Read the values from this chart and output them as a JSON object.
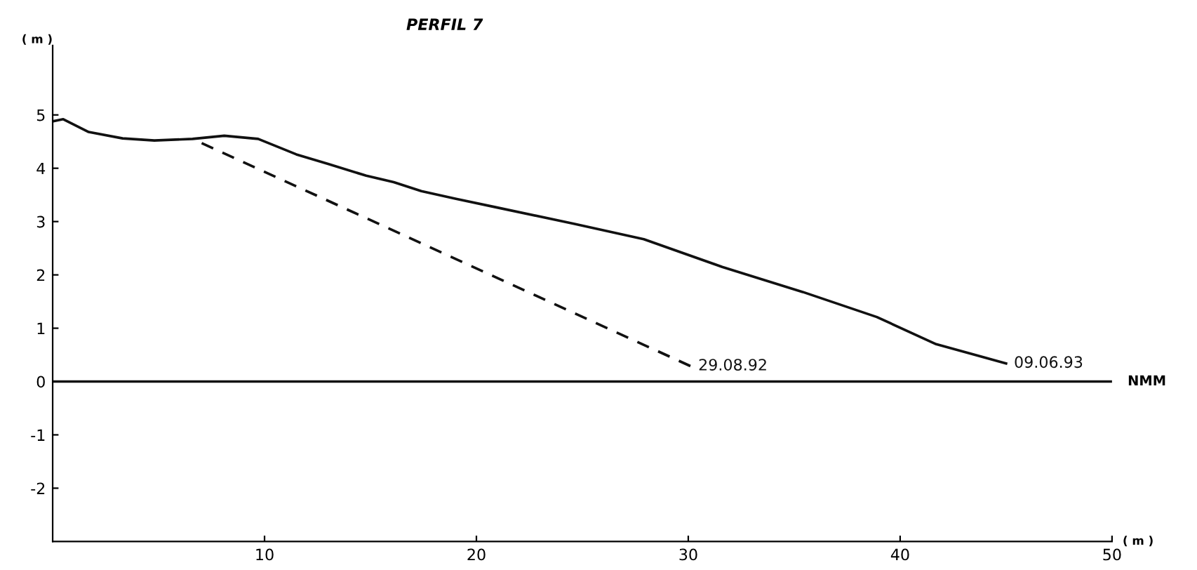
{
  "chart_data": {
    "type": "line",
    "title": "PERFIL 7",
    "ylabel": "( m )",
    "xlabel": "( m )",
    "series": [
      {
        "name": "09.06.93",
        "color": "#111111",
        "line_style": "solid",
        "x": [
          0,
          0.5,
          1.7,
          3.3,
          4.8,
          6.6,
          8.1,
          9.7,
          11.5,
          13,
          14.8,
          16.1,
          17.4,
          19.0,
          20.9,
          24.6,
          27.9,
          31.6,
          35.4,
          38.9,
          41.7,
          45.0
        ],
        "values": [
          4.88,
          4.92,
          4.68,
          4.56,
          4.52,
          4.55,
          4.61,
          4.55,
          4.26,
          4.08,
          3.86,
          3.74,
          3.57,
          3.43,
          3.27,
          2.96,
          2.67,
          2.15,
          1.68,
          1.21,
          0.7,
          0.34
        ]
      },
      {
        "name": "29.08.92",
        "color": "#111111",
        "line_style": "dashed",
        "x": [
          6.6,
          30.1
        ],
        "values": [
          4.55,
          0.29
        ]
      }
    ],
    "xlim": [
      0,
      50
    ],
    "ylim": [
      -3,
      6.3
    ],
    "xticks": [
      10,
      20,
      30,
      40,
      50
    ],
    "yticks": [
      -2,
      -1,
      0,
      1,
      2,
      3,
      4,
      5
    ],
    "ref_lines": [
      {
        "axis": "y",
        "value": 0,
        "label": "NMM",
        "color": "#111111"
      }
    ],
    "grid": false,
    "legend": false,
    "marker": "none"
  }
}
